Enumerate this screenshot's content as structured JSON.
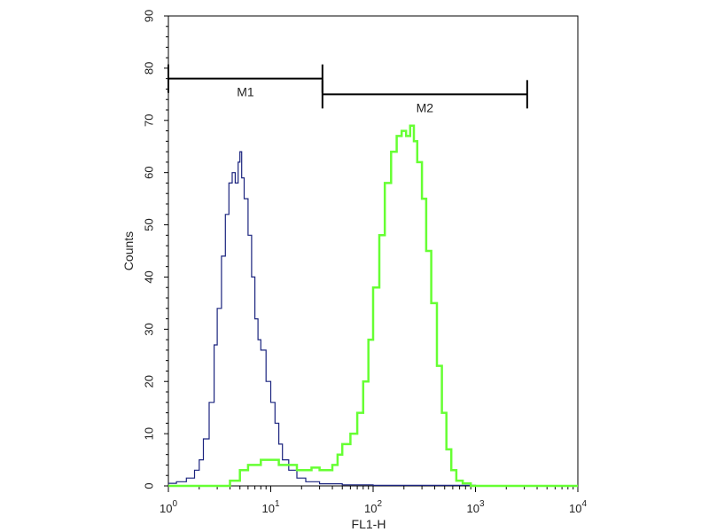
{
  "chart_data": {
    "type": "line",
    "title": "",
    "xlabel": "FL1-H",
    "ylabel": "Counts",
    "x_scale": "log",
    "xlim": [
      1,
      10000
    ],
    "ylim": [
      0,
      90
    ],
    "x_ticks": [
      {
        "value": 1,
        "base": "10",
        "exp": "0"
      },
      {
        "value": 10,
        "base": "10",
        "exp": "1"
      },
      {
        "value": 100,
        "base": "10",
        "exp": "2"
      },
      {
        "value": 1000,
        "base": "10",
        "exp": "3"
      },
      {
        "value": 10000,
        "base": "10",
        "exp": "4"
      }
    ],
    "y_ticks": [
      "0",
      "10",
      "20",
      "30",
      "40",
      "50",
      "60",
      "70",
      "80",
      "90"
    ],
    "grid": false,
    "gates": [
      {
        "label": "M1",
        "x_start": 1,
        "x_end": 32,
        "y": 78
      },
      {
        "label": "M2",
        "x_start": 32,
        "x_end": 3200,
        "y": 75
      }
    ],
    "series": [
      {
        "color": "#1a237e",
        "line_width": 1.2,
        "points": [
          [
            1.0,
            0.5
          ],
          [
            1.2,
            0.8
          ],
          [
            1.5,
            1.5
          ],
          [
            1.8,
            3
          ],
          [
            2.0,
            5
          ],
          [
            2.2,
            9
          ],
          [
            2.5,
            16
          ],
          [
            2.8,
            27
          ],
          [
            3.0,
            34
          ],
          [
            3.3,
            44
          ],
          [
            3.6,
            52
          ],
          [
            3.9,
            58
          ],
          [
            4.2,
            60
          ],
          [
            4.5,
            58
          ],
          [
            4.8,
            62
          ],
          [
            5.0,
            64
          ],
          [
            5.2,
            59
          ],
          [
            5.5,
            55
          ],
          [
            6.0,
            48
          ],
          [
            6.5,
            40
          ],
          [
            7.0,
            32
          ],
          [
            7.5,
            28
          ],
          [
            8.0,
            26
          ],
          [
            9.0,
            20
          ],
          [
            10.0,
            16
          ],
          [
            11.0,
            12
          ],
          [
            12.0,
            8
          ],
          [
            13.0,
            5
          ],
          [
            15.0,
            3
          ],
          [
            18.0,
            1.5
          ],
          [
            22.0,
            0.8
          ],
          [
            30.0,
            0.4
          ],
          [
            50.0,
            0.2
          ],
          [
            100.0,
            0.1
          ],
          [
            300.0,
            0.1
          ],
          [
            1000.0,
            0
          ],
          [
            10000.0,
            0
          ]
        ]
      },
      {
        "color": "#66ff33",
        "line_width": 2.5,
        "points": [
          [
            1.0,
            0
          ],
          [
            3.0,
            0
          ],
          [
            4.0,
            1
          ],
          [
            5.0,
            3
          ],
          [
            6.0,
            4
          ],
          [
            7.0,
            4
          ],
          [
            8.0,
            5
          ],
          [
            9.0,
            5
          ],
          [
            10.0,
            5
          ],
          [
            12.0,
            4
          ],
          [
            15.0,
            4
          ],
          [
            18.0,
            3
          ],
          [
            22.0,
            3
          ],
          [
            25.0,
            3.5
          ],
          [
            30.0,
            3
          ],
          [
            35.0,
            3
          ],
          [
            40.0,
            4
          ],
          [
            45.0,
            6
          ],
          [
            50.0,
            8
          ],
          [
            60.0,
            10
          ],
          [
            70.0,
            14
          ],
          [
            80.0,
            20
          ],
          [
            90.0,
            28
          ],
          [
            100.0,
            38
          ],
          [
            115.0,
            48
          ],
          [
            130.0,
            58
          ],
          [
            150.0,
            64
          ],
          [
            170.0,
            67
          ],
          [
            190.0,
            68
          ],
          [
            210.0,
            67
          ],
          [
            230.0,
            69
          ],
          [
            250.0,
            66
          ],
          [
            270.0,
            62
          ],
          [
            300.0,
            55
          ],
          [
            330.0,
            45
          ],
          [
            370.0,
            35
          ],
          [
            420.0,
            23
          ],
          [
            470.0,
            14
          ],
          [
            520.0,
            7
          ],
          [
            580.0,
            3
          ],
          [
            650.0,
            1
          ],
          [
            750.0,
            0.5
          ],
          [
            900.0,
            0
          ],
          [
            10000.0,
            0
          ]
        ]
      }
    ]
  }
}
